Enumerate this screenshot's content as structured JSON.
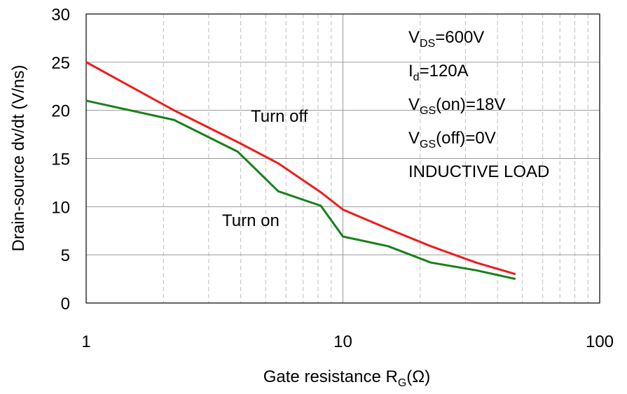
{
  "chart_data": {
    "type": "line",
    "xscale": "log",
    "xlim": [
      1,
      100
    ],
    "ylim": [
      0,
      30
    ],
    "xticks": [
      "1",
      "10",
      "100"
    ],
    "yticks": [
      "0",
      "5",
      "10",
      "15",
      "20",
      "25",
      "30"
    ],
    "xlabel": {
      "main": "Gate resistance R",
      "sub": "G",
      "tail": "(Ω)"
    },
    "ylabel": "Drain-source dv/dt (V/ns)",
    "grid": true,
    "series": [
      {
        "name": "Turn off",
        "color": "#ee1c1c",
        "x": [
          1,
          2.2,
          3.9,
          5.6,
          8.2,
          10,
          15,
          22,
          33,
          47
        ],
        "y": [
          25.0,
          20.0,
          16.7,
          14.5,
          11.5,
          9.7,
          7.7,
          5.9,
          4.2,
          3.0
        ]
      },
      {
        "name": "Turn on",
        "color": "#1a7f1a",
        "x": [
          1,
          2.2,
          3.9,
          5.6,
          8.2,
          10,
          15,
          22,
          33,
          47
        ],
        "y": [
          21.0,
          19.0,
          15.7,
          11.6,
          10.1,
          6.9,
          5.9,
          4.2,
          3.4,
          2.5
        ]
      }
    ],
    "annotations": [
      {
        "parts": [
          {
            "t": "V"
          },
          {
            "t": "DS",
            "sub": true
          },
          {
            "t": "=600V"
          }
        ]
      },
      {
        "parts": [
          {
            "t": "I"
          },
          {
            "t": "d",
            "sub": true
          },
          {
            "t": "=120A"
          }
        ]
      },
      {
        "parts": [
          {
            "t": "V"
          },
          {
            "t": "GS",
            "sub": true
          },
          {
            "t": "(on)=18V"
          }
        ]
      },
      {
        "parts": [
          {
            "t": "V"
          },
          {
            "t": "GS",
            "sub": true
          },
          {
            "t": "(off)=0V"
          }
        ]
      },
      {
        "parts": [
          {
            "t": "INDUCTIVE LOAD"
          }
        ]
      }
    ]
  }
}
